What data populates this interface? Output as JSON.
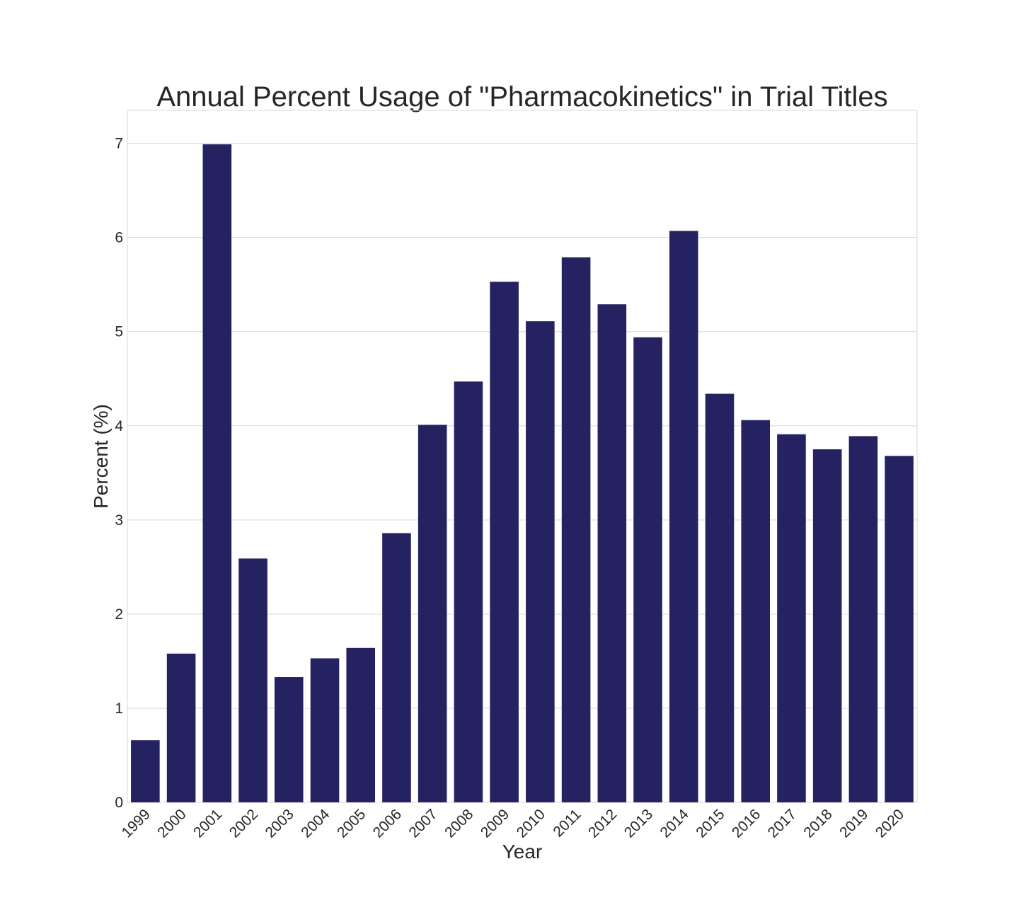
{
  "chart_data": {
    "type": "bar",
    "title": "Annual Percent Usage of \"Pharmacokinetics\" in Trial Titles",
    "xlabel": "Year",
    "ylabel": "Percent (%)",
    "categories": [
      "1999",
      "2000",
      "2001",
      "2002",
      "2003",
      "2004",
      "2005",
      "2006",
      "2007",
      "2008",
      "2009",
      "2010",
      "2011",
      "2012",
      "2013",
      "2014",
      "2015",
      "2016",
      "2017",
      "2018",
      "2019",
      "2020"
    ],
    "values": [
      0.66,
      1.58,
      6.99,
      2.59,
      1.33,
      1.53,
      1.64,
      2.86,
      4.01,
      4.47,
      5.53,
      5.11,
      5.79,
      5.29,
      4.94,
      6.07,
      4.34,
      4.06,
      3.91,
      3.75,
      3.89,
      3.68
    ],
    "ylim": [
      0,
      7.35
    ],
    "yticks": [
      0,
      1,
      2,
      3,
      4,
      5,
      6,
      7
    ],
    "grid": "horizontal",
    "legend": "none",
    "bar_color": "#252262",
    "grid_color": "#d9d9d9",
    "text_color": "#262626"
  }
}
